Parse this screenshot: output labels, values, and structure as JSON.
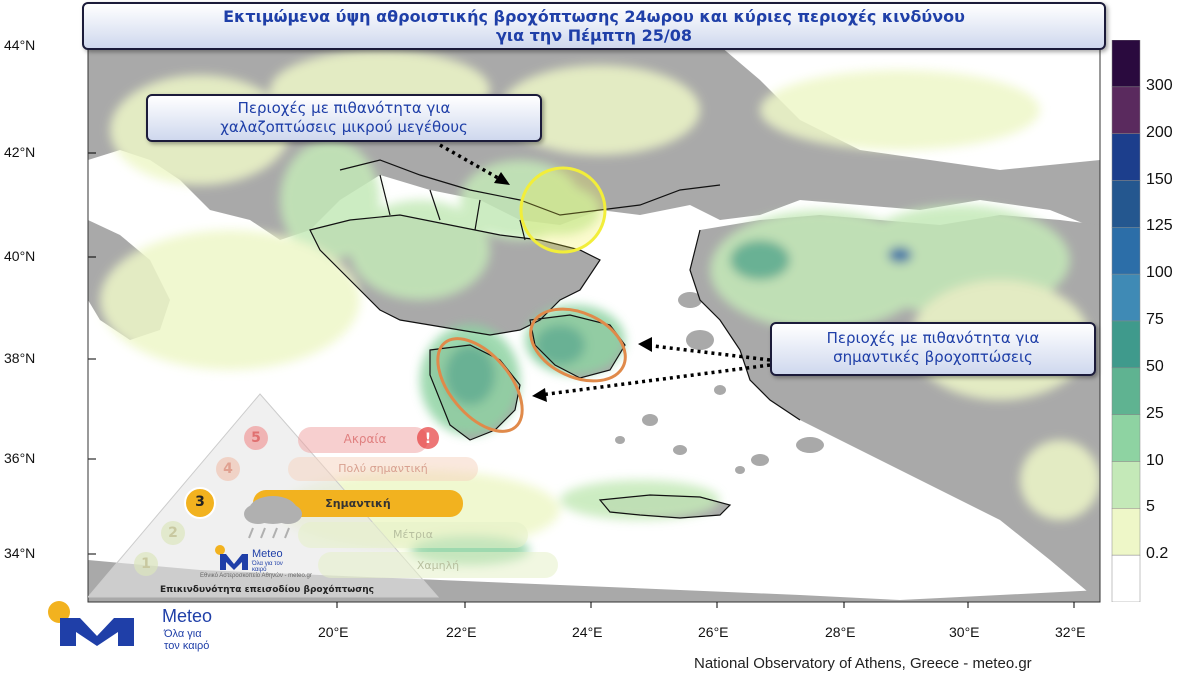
{
  "title": {
    "line1": "Εκτιμώμενα ύψη αθροιστικής βροχόπτωσης 24ωρου και κύριες περιοχές κινδύνου",
    "line2": "για την Πέμπτη 25/08"
  },
  "callouts": {
    "hail": {
      "line1": "Περιοχές με πιθανότητα για",
      "line2": "χαλαζοπτώσεις μικρού μεγέθους"
    },
    "rain": {
      "line1": "Περιοχές με πιθανότητα για",
      "line2": "σημαντικές βροχοπτώσεις"
    }
  },
  "axes": {
    "lat_labels": [
      "44°N",
      "42°N",
      "40°N",
      "38°N",
      "36°N",
      "34°N"
    ],
    "lon_labels": [
      "20°E",
      "22°E",
      "24°E",
      "26°E",
      "28°E",
      "30°E",
      "32°E"
    ]
  },
  "colorbar": {
    "labels": [
      "300",
      "200",
      "150",
      "125",
      "100",
      "75",
      "50",
      "25",
      "10",
      "5",
      "0.2"
    ],
    "colors": [
      "#2a0a3e",
      "#5a2a5e",
      "#1c3e8c",
      "#24578f",
      "#2c6ea8",
      "#3f8ab5",
      "#3f9a8c",
      "#5fb391",
      "#8ed3a2",
      "#c4e9b8",
      "#eef7c8",
      "#ffffff"
    ]
  },
  "risk_scale": {
    "levels": [
      {
        "num": "5",
        "label": "Ακραία"
      },
      {
        "num": "4",
        "label": "Πολύ σημαντική"
      },
      {
        "num": "3",
        "label": "Σημαντική"
      },
      {
        "num": "2",
        "label": "Μέτρια"
      },
      {
        "num": "1",
        "label": "Χαμηλή"
      }
    ],
    "active_level": 3,
    "brand": "Meteo",
    "brand_tagline": "Όλα για τον καιρό",
    "institute": "Εθνικό Αστεροσκοπείο Αθηνών - meteo.gr",
    "caption": "Επικινδυνότητα επεισοδίου βροχόπτωσης"
  },
  "logo": {
    "brand": "Meteo",
    "tagline_line1": "Όλα για",
    "tagline_line2": "τον καιρό"
  },
  "credit": "National Observatory of Athens, Greece - meteo.gr",
  "colors": {
    "land": "#a9a9a9",
    "sea": "#ffffff",
    "title_text": "#1f3fa8",
    "hail_circle": "#f2ee3a",
    "rain_ellipse": "#e08a4a",
    "active_risk": "#f2b21f"
  }
}
